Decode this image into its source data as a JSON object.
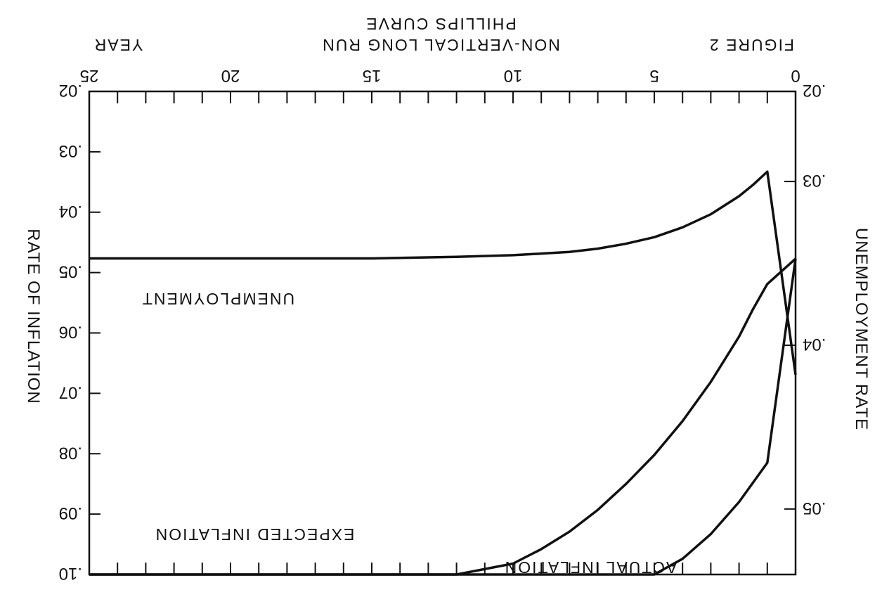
{
  "chart_data": {
    "type": "line",
    "orientation": "rotated-180",
    "title_lines": [
      "FIGURE 2",
      "NON-VERTICAL LONG RUN",
      "PHILLIPS CURVE"
    ],
    "xlabel": "YEAR",
    "ylabel_left": "RATE OF INFLATION",
    "ylabel_right": "UNEMPLOYMENT RATE",
    "xlim": [
      0,
      25
    ],
    "x_ticks": [
      "0",
      "5",
      "10",
      "15",
      "20",
      "25"
    ],
    "inflation_axis": {
      "lim": [
        0.02,
        0.1
      ],
      "ticks": [
        ".02",
        ".03",
        ".04",
        ".05",
        ".06",
        ".07",
        ".08",
        ".09",
        ".10"
      ]
    },
    "unemployment_axis": {
      "lim": [
        0.0245,
        0.054
      ],
      "ticks": [
        ".02",
        ".03",
        ".04",
        ".05"
      ]
    },
    "series": [
      {
        "name": "UNEMPLOYMENT",
        "axis": "unemployment",
        "x": [
          0,
          1,
          1.5,
          2,
          3,
          4,
          5,
          6,
          7,
          8,
          9,
          10,
          12,
          15,
          20,
          25
        ],
        "y": [
          0.0418,
          0.0294,
          0.0302,
          0.0309,
          0.032,
          0.0328,
          0.0334,
          0.0338,
          0.0341,
          0.0343,
          0.0344,
          0.0345,
          0.0346,
          0.0347,
          0.0347,
          0.0347
        ]
      },
      {
        "name": "EXPECTED INFLATION",
        "axis": "inflation",
        "x": [
          0,
          1,
          1.5,
          2,
          3,
          4,
          5,
          6,
          7,
          8,
          9,
          10,
          12,
          15,
          20,
          25
        ],
        "y": [
          0.0477,
          0.0519,
          0.056,
          0.0606,
          0.0681,
          0.0746,
          0.0802,
          0.085,
          0.0893,
          0.0929,
          0.0958,
          0.0982,
          0.1018,
          0.1048,
          0.1068,
          0.1074
        ]
      },
      {
        "name": "ACTUAL INFLATION",
        "axis": "inflation",
        "x": [
          0,
          1,
          2,
          3,
          4,
          5,
          6,
          7,
          8,
          9,
          10,
          12,
          15,
          20,
          25
        ],
        "y": [
          0.0477,
          0.0815,
          0.088,
          0.0933,
          0.0974,
          0.1004,
          0.1027,
          0.1043,
          0.1055,
          0.1062,
          0.1067,
          0.1072,
          0.1075,
          0.1076,
          0.1076
        ]
      }
    ]
  }
}
